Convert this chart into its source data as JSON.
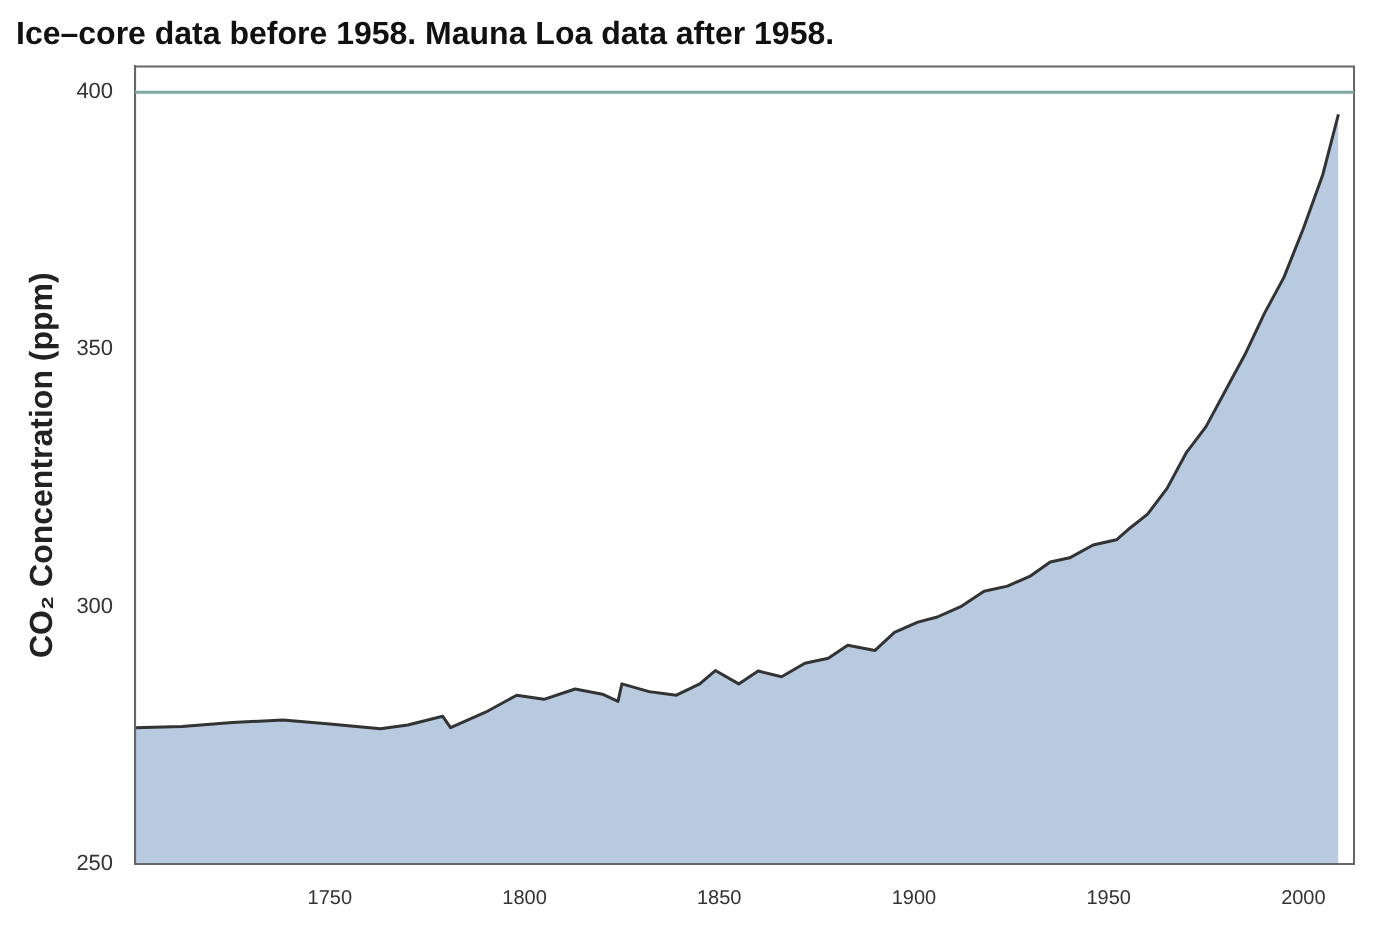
{
  "chart_data": {
    "type": "area",
    "title": "Ice–core data before 1958. Mauna Loa data after 1958.",
    "ylabel": "CO₂ Concentration (ppm)",
    "series": [
      {
        "color": "#333333",
        "x": [
          1700,
          1712,
          1725,
          1738,
          1750,
          1763,
          1770,
          1779,
          1781,
          1790,
          1798,
          1805,
          1813,
          1820,
          1824,
          1825,
          1832,
          1839,
          1845,
          1849,
          1855,
          1860,
          1866,
          1872,
          1878,
          1883,
          1890,
          1895,
          1901,
          1906,
          1912,
          1918,
          1924,
          1930,
          1935,
          1940,
          1946,
          1952,
          1955,
          1960,
          1965,
          1970,
          1975,
          1980,
          1985,
          1990,
          1995,
          2000,
          2005,
          2009
        ],
        "values": [
          276.5,
          276.7,
          277.5,
          278,
          277.2,
          276.3,
          277,
          278.7,
          276.5,
          279.5,
          282.8,
          282,
          284,
          283,
          281.6,
          285,
          283.5,
          282.8,
          285,
          287.6,
          285,
          287.5,
          286.4,
          289,
          290,
          292.5,
          291.5,
          295,
          297,
          298,
          300,
          303,
          304,
          306,
          308.7,
          309.5,
          312,
          313,
          315,
          318,
          323,
          330,
          335,
          342,
          349,
          357,
          364,
          373.5,
          384,
          395.7
        ]
      }
    ],
    "xlim": [
      1700,
      2013
    ],
    "xticks": [
      1750,
      1800,
      1850,
      1900,
      1950,
      2000
    ],
    "ylim": [
      250,
      405
    ],
    "yticks": [
      250,
      300,
      350,
      400
    ],
    "ref_lines": [
      {
        "axis": "y",
        "value": 400,
        "color": "#7fa8a0"
      }
    ],
    "grid": false,
    "legend": false
  }
}
